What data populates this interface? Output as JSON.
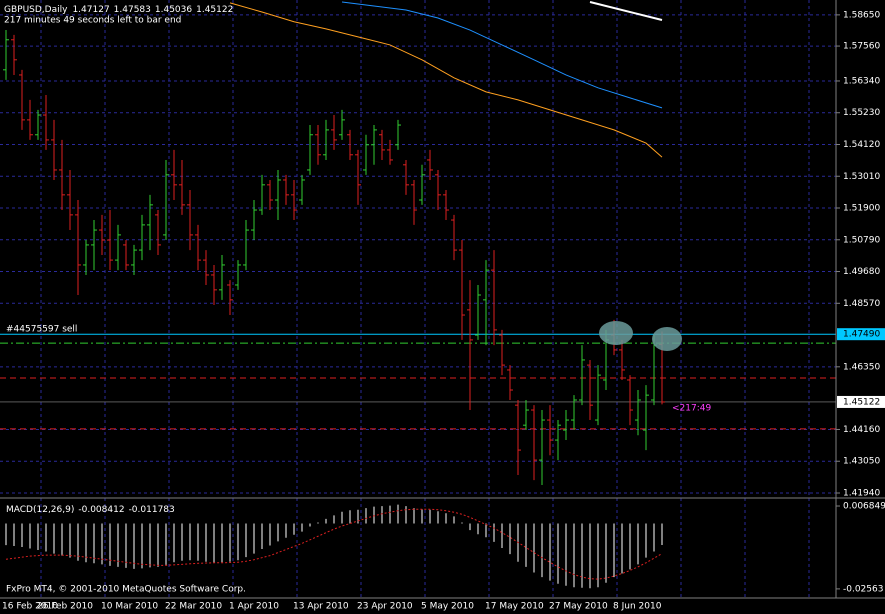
{
  "chart_data": {
    "type": "ohlc",
    "title": "GBPUSD,Daily",
    "subtitle": "217 minutes 49 seconds left to bar end",
    "copyright": "FxPro MT4, © 2001-2010 MetaQuotes Software Corp.",
    "countdown": "<217:49",
    "up_color": "#32cd32",
    "down_color": "#dc2020",
    "grid": true,
    "categories": [
      "16 Feb 2010",
      null,
      null,
      null,
      null,
      null,
      null,
      null,
      "26 Feb 2010",
      null,
      null,
      null,
      null,
      null,
      null,
      null,
      "10 Mar 2010",
      null,
      null,
      null,
      null,
      null,
      null,
      null,
      "22 Mar 2010",
      null,
      null,
      null,
      null,
      null,
      null,
      null,
      "1 Apr 2010",
      null,
      null,
      null,
      null,
      null,
      null,
      null,
      "13 Apr 2010",
      null,
      null,
      null,
      null,
      null,
      null,
      null,
      "23 Apr 2010",
      null,
      null,
      null,
      null,
      null,
      null,
      null,
      "5 May 2010",
      null,
      null,
      null,
      null,
      null,
      null,
      null,
      "17 May 2010",
      null,
      null,
      null,
      null,
      null,
      null,
      null,
      "27 May 2010",
      null,
      null,
      null,
      null,
      null,
      null,
      null,
      "8 Jun 2010",
      null,
      null
    ],
    "bars": [
      [
        1.5673,
        1.5812,
        1.5638,
        1.5778
      ],
      [
        1.5778,
        1.5795,
        1.5655,
        1.5708
      ],
      [
        1.5655,
        1.5673,
        1.5463,
        1.5498
      ],
      [
        1.5498,
        1.5568,
        1.5428,
        1.5446
      ],
      [
        1.5446,
        1.5533,
        1.5428,
        1.5515
      ],
      [
        1.5515,
        1.5585,
        1.5393,
        1.5428
      ],
      [
        1.5428,
        1.5498,
        1.5288,
        1.5323
      ],
      [
        1.5323,
        1.5428,
        1.5183,
        1.5236
      ],
      [
        1.5236,
        1.5323,
        1.5113,
        1.5166
      ],
      [
        1.5166,
        1.5218,
        1.4886,
        1.4991
      ],
      [
        1.4991,
        1.5078,
        1.4956,
        1.5061
      ],
      [
        1.5061,
        1.5148,
        1.4973,
        1.5113
      ],
      [
        1.5113,
        1.5166,
        1.5026,
        1.5078
      ],
      [
        1.5078,
        1.5183,
        1.4973,
        1.5008
      ],
      [
        1.5008,
        1.5131,
        1.4973,
        1.5096
      ],
      [
        1.5061,
        1.5078,
        1.4973,
        1.4991
      ],
      [
        1.4991,
        1.5061,
        1.4956,
        1.5043
      ],
      [
        1.5043,
        1.5166,
        1.5008,
        1.5131
      ],
      [
        1.5131,
        1.5236,
        1.5043,
        1.5201
      ],
      [
        1.5166,
        1.5183,
        1.5026,
        1.5061
      ],
      [
        1.5096,
        1.5358,
        1.5078,
        1.5306
      ],
      [
        1.5306,
        1.5393,
        1.5218,
        1.5271
      ],
      [
        1.5271,
        1.5358,
        1.5166,
        1.5201
      ],
      [
        1.5201,
        1.5253,
        1.5043,
        1.5096
      ],
      [
        1.5096,
        1.5131,
        1.4973,
        1.5008
      ],
      [
        1.5008,
        1.5043,
        1.4921,
        1.4956
      ],
      [
        1.4956,
        1.4991,
        1.4851,
        1.4904
      ],
      [
        1.4904,
        1.5026,
        1.4869,
        1.4991
      ],
      [
        1.4921,
        1.4938,
        1.4816,
        1.4869
      ],
      [
        1.4921,
        1.5008,
        1.4904,
        1.4991
      ],
      [
        1.4991,
        1.5148,
        1.4973,
        1.5113
      ],
      [
        1.5113,
        1.5218,
        1.5078,
        1.5183
      ],
      [
        1.5183,
        1.5306,
        1.5166,
        1.5271
      ],
      [
        1.5271,
        1.5288,
        1.5183,
        1.5218
      ],
      [
        1.5218,
        1.5323,
        1.5148,
        1.5288
      ],
      [
        1.5288,
        1.5306,
        1.5201,
        1.5236
      ],
      [
        1.5236,
        1.5288,
        1.5148,
        1.5183
      ],
      [
        1.5218,
        1.5306,
        1.5201,
        1.5288
      ],
      [
        1.5323,
        1.548,
        1.5306,
        1.5446
      ],
      [
        1.5446,
        1.548,
        1.5341,
        1.5376
      ],
      [
        1.5376,
        1.5498,
        1.5358,
        1.5463
      ],
      [
        1.5463,
        1.5515,
        1.5393,
        1.5428
      ],
      [
        1.5446,
        1.5533,
        1.5428,
        1.5498
      ],
      [
        1.5446,
        1.5463,
        1.5358,
        1.5376
      ],
      [
        1.5376,
        1.5393,
        1.5201,
        1.5271
      ],
      [
        1.5323,
        1.5446,
        1.5306,
        1.5411
      ],
      [
        1.5411,
        1.548,
        1.5341,
        1.5463
      ],
      [
        1.5446,
        1.5463,
        1.5358,
        1.5393
      ],
      [
        1.5393,
        1.5428,
        1.5341,
        1.5358
      ],
      [
        1.5411,
        1.5498,
        1.5393,
        1.548
      ],
      [
        1.5341,
        1.5358,
        1.5236,
        1.5271
      ],
      [
        1.5271,
        1.5288,
        1.5131,
        1.5183
      ],
      [
        1.5218,
        1.5341,
        1.5201,
        1.5306
      ],
      [
        1.5358,
        1.5393,
        1.5288,
        1.5323
      ],
      [
        1.5306,
        1.5323,
        1.5183,
        1.5236
      ],
      [
        1.5236,
        1.5253,
        1.5148,
        1.5183
      ],
      [
        1.5148,
        1.5166,
        1.5008,
        1.5043
      ],
      [
        1.5043,
        1.5078,
        1.4729,
        1.4816
      ],
      [
        1.4834,
        1.4938,
        1.4484,
        1.4729
      ],
      [
        1.4746,
        1.4921,
        1.4729,
        1.4886
      ],
      [
        1.4869,
        1.5008,
        1.4711,
        1.4973
      ],
      [
        1.4973,
        1.5043,
        1.4711,
        1.4764
      ],
      [
        1.4746,
        1.4764,
        1.4606,
        1.4641
      ],
      [
        1.4624,
        1.4641,
        1.4519,
        1.4554
      ],
      [
        1.4501,
        1.4519,
        1.4257,
        1.4344
      ],
      [
        1.4431,
        1.4519,
        1.4414,
        1.4484
      ],
      [
        1.4484,
        1.4501,
        1.4239,
        1.4309
      ],
      [
        1.4309,
        1.4484,
        1.4222,
        1.4449
      ],
      [
        1.4449,
        1.4501,
        1.4326,
        1.4379
      ],
      [
        1.4379,
        1.4449,
        1.4309,
        1.4431
      ],
      [
        1.4414,
        1.4484,
        1.4379,
        1.4449
      ],
      [
        1.4449,
        1.4536,
        1.4414,
        1.4519
      ],
      [
        1.4519,
        1.4711,
        1.4501,
        1.4659
      ],
      [
        1.4641,
        1.4659,
        1.4449,
        1.4501
      ],
      [
        1.4449,
        1.4641,
        1.4431,
        1.4606
      ],
      [
        1.4589,
        1.4764,
        1.4554,
        1.4729
      ],
      [
        1.4746,
        1.4799,
        1.4676,
        1.4694
      ],
      [
        1.4694,
        1.4729,
        1.4589,
        1.4624
      ],
      [
        1.4589,
        1.4606,
        1.4431,
        1.4484
      ],
      [
        1.4449,
        1.4554,
        1.4396,
        1.4519
      ],
      [
        1.4414,
        1.4571,
        1.4344,
        1.4536
      ],
      [
        1.4519,
        1.4746,
        1.4501,
        1.4711
      ],
      [
        1.47127,
        1.47583,
        1.45036,
        1.45122
      ]
    ],
    "ylim": [
      1.418,
      1.5917
    ],
    "yticks": [
      {
        "value": 1.5865,
        "label": "1.58650"
      },
      {
        "value": 1.5756,
        "label": "1.57560"
      },
      {
        "value": 1.5634,
        "label": "1.56340"
      },
      {
        "value": 1.5523,
        "label": "1.55230"
      },
      {
        "value": 1.5412,
        "label": "1.54120"
      },
      {
        "value": 1.5301,
        "label": "1.53010"
      },
      {
        "value": 1.519,
        "label": "1.51900"
      },
      {
        "value": 1.5079,
        "label": "1.50790"
      },
      {
        "value": 1.4968,
        "label": "1.49680"
      },
      {
        "value": 1.4857,
        "label": "1.48570"
      },
      {
        "value": 1.4635,
        "label": "1.46350"
      },
      {
        "value": 1.4416,
        "label": "1.44160"
      },
      {
        "value": 1.4305,
        "label": "1.43050"
      },
      {
        "value": 1.4194,
        "label": "1.41940"
      }
    ],
    "moving_averages": [
      {
        "color": "#ffa020",
        "x": [
          28,
          32,
          36,
          40,
          44,
          48,
          52,
          56,
          60,
          64,
          68,
          72,
          76,
          80,
          82
        ],
        "values": [
          1.5907,
          1.5875,
          1.5841,
          1.5816,
          1.5788,
          1.576,
          1.5708,
          1.5645,
          1.5596,
          1.5568,
          1.5533,
          1.5498,
          1.5463,
          1.5417,
          1.5368
        ]
      },
      {
        "color": "#1e90ff",
        "x": [
          42,
          46,
          50,
          54,
          58,
          62,
          66,
          70,
          74,
          78,
          82
        ],
        "values": [
          1.591,
          1.5896,
          1.5882,
          1.5854,
          1.5812,
          1.576,
          1.5708,
          1.5655,
          1.561,
          1.5575,
          1.554
        ]
      },
      {
        "color": "#ffffff",
        "x": [
          73,
          82
        ],
        "values": [
          1.591,
          1.5847
        ]
      }
    ],
    "levels": [
      {
        "value": 1.4749,
        "label": "1.47490",
        "name": "#44575597 sell",
        "color": "#00c8ff",
        "style": "solid"
      },
      {
        "value": 1.4718,
        "color": "#32cd32",
        "style": "dashdot"
      },
      {
        "value": 1.4596,
        "color": "#dc2020",
        "style": "dash"
      },
      {
        "value": 1.4418,
        "color": "#dc2020",
        "style": "dash"
      }
    ],
    "macd": {
      "name": "MACD(12,26,9)",
      "ylim": [
        -0.0292,
        0.0096
      ],
      "yticks": [
        0.006849,
        -0.02563
      ],
      "histogram_color": "#ffffff",
      "signal_color": "#dc2020",
      "histogram": [
        -0.0085,
        -0.0088,
        -0.0092,
        -0.0098,
        -0.0104,
        -0.011,
        -0.0118,
        -0.0126,
        -0.0134,
        -0.0146,
        -0.0152,
        -0.0156,
        -0.016,
        -0.0166,
        -0.017,
        -0.0174,
        -0.0178,
        -0.0176,
        -0.0172,
        -0.017,
        -0.0162,
        -0.0152,
        -0.0146,
        -0.0144,
        -0.0146,
        -0.015,
        -0.0154,
        -0.0152,
        -0.015,
        -0.0144,
        -0.0132,
        -0.0118,
        -0.01,
        -0.0086,
        -0.007,
        -0.0056,
        -0.0044,
        -0.0032,
        -0.0012,
        0.0004,
        0.0018,
        0.0032,
        0.0046,
        0.0052,
        0.0054,
        0.006,
        0.0066,
        0.0068,
        0.007,
        0.0074,
        0.0068,
        0.006,
        0.0056,
        0.0054,
        0.0048,
        0.004,
        0.0028,
        0.0004,
        -0.0026,
        -0.0042,
        -0.0054,
        -0.0072,
        -0.0096,
        -0.012,
        -0.015,
        -0.017,
        -0.0192,
        -0.021,
        -0.0224,
        -0.0236,
        -0.0244,
        -0.025,
        -0.0252,
        -0.0254,
        -0.025,
        -0.0232,
        -0.021,
        -0.0196,
        -0.018,
        -0.016,
        -0.0134,
        -0.011,
        -0.008412
      ],
      "signal": [
        -0.014,
        -0.0136,
        -0.0132,
        -0.0128,
        -0.0126,
        -0.0124,
        -0.0124,
        -0.0124,
        -0.0126,
        -0.0128,
        -0.0132,
        -0.0136,
        -0.014,
        -0.0144,
        -0.0148,
        -0.0152,
        -0.0156,
        -0.016,
        -0.0162,
        -0.0164,
        -0.0164,
        -0.0162,
        -0.016,
        -0.0158,
        -0.0156,
        -0.0155,
        -0.0154,
        -0.0154,
        -0.0153,
        -0.0152,
        -0.0148,
        -0.0142,
        -0.0134,
        -0.0126,
        -0.0114,
        -0.0102,
        -0.009,
        -0.0078,
        -0.0064,
        -0.005,
        -0.0036,
        -0.0022,
        -0.001,
        0,
        0.001,
        0.002,
        0.003,
        0.0038,
        0.0044,
        0.005,
        0.0054,
        0.0056,
        0.0056,
        0.0056,
        0.0054,
        0.005,
        0.0044,
        0.0036,
        0.0024,
        0.001,
        -0.0004,
        -0.0018,
        -0.0036,
        -0.0054,
        -0.0074,
        -0.0094,
        -0.0114,
        -0.0134,
        -0.0152,
        -0.017,
        -0.0186,
        -0.02,
        -0.021,
        -0.0216,
        -0.0218,
        -0.0214,
        -0.0206,
        -0.0196,
        -0.0184,
        -0.017,
        -0.0154,
        -0.0136,
        -0.011783
      ]
    }
  }
}
